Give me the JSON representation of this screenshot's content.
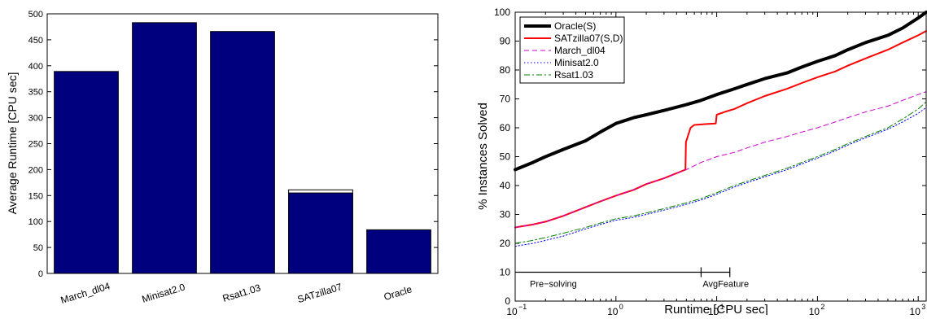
{
  "chart_data": [
    {
      "type": "bar",
      "ylabel": "Average Runtime [CPU sec]",
      "ylim": [
        0,
        500
      ],
      "yticks": [
        0,
        50,
        100,
        150,
        200,
        250,
        300,
        350,
        400,
        450,
        500
      ],
      "categories": [
        "March_dl04",
        "Minisat2.0",
        "Rsat1.03",
        "SATzilla07",
        "Oracle"
      ],
      "values": [
        389,
        483,
        466,
        155,
        84
      ],
      "bar_color": "#00007f",
      "overlay_values": [
        null,
        null,
        null,
        161,
        null
      ],
      "overlay_color": "#ffffff"
    },
    {
      "type": "line",
      "xlabel": "Runtime [CPU sec]",
      "ylabel": "% Instances Solved",
      "xscale": "log",
      "xlim": [
        0.1,
        1200
      ],
      "ylim": [
        0,
        100
      ],
      "yticks": [
        0,
        10,
        20,
        30,
        40,
        50,
        60,
        70,
        80,
        90,
        100
      ],
      "xticks": [
        {
          "value": 0.1,
          "base": "10",
          "exp": "−1"
        },
        {
          "value": 1,
          "base": "10",
          "exp": "0"
        },
        {
          "value": 10,
          "base": "10",
          "exp": "1"
        },
        {
          "value": 100,
          "base": "10",
          "exp": "2"
        },
        {
          "value": 1000,
          "base": "10",
          "exp": "3"
        }
      ],
      "legend_position": "top-left",
      "series": [
        {
          "name": "Oracle(S)",
          "color": "#000000",
          "style": "solid",
          "width": 4,
          "x": [
            0.1,
            0.15,
            0.2,
            0.3,
            0.5,
            0.7,
            1,
            1.5,
            2,
            3,
            5,
            7,
            10,
            15,
            20,
            30,
            50,
            70,
            100,
            150,
            200,
            300,
            500,
            700,
            1000,
            1200
          ],
          "y": [
            45.5,
            48,
            50,
            52.5,
            55.5,
            58.5,
            61.5,
            63.5,
            64.5,
            66,
            68,
            69.5,
            71.5,
            73.5,
            75,
            77,
            79,
            81,
            83,
            85,
            87,
            89.5,
            92,
            94.5,
            98,
            100
          ]
        },
        {
          "name": "SATzilla07(S,D)",
          "color": "#ff0000",
          "style": "solid",
          "width": 2,
          "x": [
            0.1,
            0.15,
            0.2,
            0.3,
            0.5,
            0.7,
            1,
            1.5,
            2,
            3,
            4.9,
            4.95,
            5.5,
            6,
            8,
            9.8,
            10,
            12,
            15,
            20,
            30,
            50,
            70,
            100,
            150,
            200,
            300,
            500,
            700,
            1000,
            1200
          ],
          "y": [
            25.5,
            26.5,
            27.5,
            29.5,
            32.5,
            34.5,
            36.5,
            38.5,
            40.5,
            42.5,
            45.5,
            55,
            60,
            61,
            61.3,
            61.5,
            64.5,
            65.5,
            66.5,
            68.5,
            71,
            73.5,
            75.5,
            77.5,
            79.5,
            81.5,
            84,
            87,
            89.5,
            92,
            93.5
          ]
        },
        {
          "name": "March_dl04",
          "color": "#cc00cc",
          "style": "dashed",
          "width": 1,
          "x": [
            0.1,
            0.15,
            0.2,
            0.3,
            0.5,
            0.7,
            1,
            1.5,
            2,
            3,
            5,
            7,
            10,
            15,
            20,
            30,
            50,
            70,
            100,
            150,
            200,
            300,
            500,
            700,
            1000,
            1200
          ],
          "y": [
            25.5,
            26.5,
            27.5,
            29.5,
            32.5,
            34.5,
            36.5,
            38.5,
            40.5,
            42.5,
            45.5,
            48,
            50,
            51.5,
            53,
            55,
            57,
            58.5,
            60,
            62,
            63.5,
            65.5,
            67.5,
            69.5,
            71.5,
            72.5
          ]
        },
        {
          "name": "Minisat2.0",
          "color": "#0000ff",
          "style": "dotted",
          "width": 1,
          "x": [
            0.1,
            0.15,
            0.2,
            0.3,
            0.5,
            0.7,
            1,
            1.5,
            2,
            3,
            5,
            7,
            10,
            15,
            20,
            30,
            50,
            70,
            100,
            150,
            200,
            300,
            500,
            700,
            1000,
            1200
          ],
          "y": [
            19,
            20,
            21,
            22.5,
            25,
            26.5,
            28,
            29,
            30,
            31.5,
            33.5,
            35,
            37,
            39.5,
            41,
            43,
            45.5,
            47.5,
            49.5,
            52,
            54,
            56.5,
            59.5,
            62,
            65,
            67
          ]
        },
        {
          "name": "Rsat1.03",
          "color": "#007f00",
          "style": "dashdot",
          "width": 1,
          "x": [
            0.1,
            0.15,
            0.2,
            0.3,
            0.5,
            0.7,
            1,
            1.5,
            2,
            3,
            5,
            7,
            10,
            15,
            20,
            30,
            50,
            70,
            100,
            150,
            200,
            300,
            500,
            700,
            1000,
            1200
          ],
          "y": [
            20,
            21,
            22,
            23.5,
            25.5,
            27,
            28.5,
            29.5,
            30.5,
            32,
            34,
            35.5,
            37.5,
            40,
            41.5,
            43.5,
            46,
            48,
            50,
            52.5,
            54.5,
            57,
            60,
            63,
            66.5,
            69
          ]
        }
      ],
      "annotations": [
        {
          "label": "Pre−solving",
          "x_start": 0.1,
          "x_end": 7,
          "y": 10
        },
        {
          "label": "AvgFeature",
          "x_start": 7,
          "x_end": 13.5,
          "y": 10
        }
      ]
    }
  ]
}
